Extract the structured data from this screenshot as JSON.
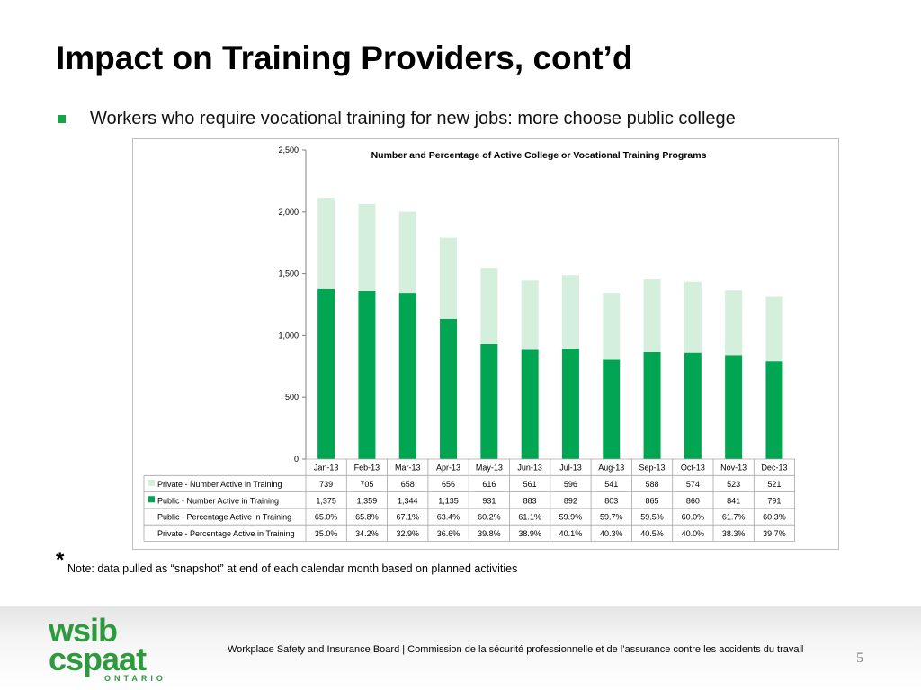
{
  "slide": {
    "title": "Impact on Training Providers, cont’d",
    "bullet": "Workers who require vocational training for new jobs: more choose public college",
    "note_star": "*",
    "note": "Note: data pulled as “snapshot” at end of each calendar month based on planned activities",
    "footer_text": "Workplace Safety and Insurance Board  | Commission de la sécurité professionnelle et de l’assurance contre les accidents du travail",
    "page_number": "5",
    "logo": {
      "line1": "wsib",
      "line2": "cspaat",
      "line3": "ONTARIO"
    },
    "colors": {
      "accent": "#1aa24b",
      "logo_green": "#2e9a3f"
    }
  },
  "chart_data": {
    "type": "bar",
    "stacked": true,
    "title": "Number and Percentage of Active College or Vocational Training Programs",
    "categories": [
      "Jan-13",
      "Feb-13",
      "Mar-13",
      "Apr-13",
      "May-13",
      "Jun-13",
      "Jul-13",
      "Aug-13",
      "Sep-13",
      "Oct-13",
      "Nov-13",
      "Dec-13"
    ],
    "ylim": [
      0,
      2500
    ],
    "yticks": [
      "0",
      "500",
      "1,000",
      "1,500",
      "2,000",
      "2,500"
    ],
    "ytick_values": [
      0,
      500,
      1000,
      1500,
      2000,
      2500
    ],
    "grid": false,
    "series": [
      {
        "name": "Public - Number Active in Training",
        "values": [
          1375,
          1359,
          1344,
          1135,
          931,
          883,
          892,
          803,
          865,
          860,
          841,
          791
        ],
        "color": "#00a651"
      },
      {
        "name": "Private - Number Active in Training",
        "values": [
          739,
          705,
          658,
          656,
          616,
          561,
          596,
          541,
          588,
          574,
          523,
          521
        ],
        "color": "#d5efdd"
      }
    ],
    "table": {
      "rows": [
        {
          "label": "Private - Number Active in Training",
          "swatch": "#d5efdd",
          "cells": [
            "739",
            "705",
            "658",
            "656",
            "616",
            "561",
            "596",
            "541",
            "588",
            "574",
            "523",
            "521"
          ]
        },
        {
          "label": "Public - Number Active in Training",
          "swatch": "#00a651",
          "cells": [
            "1,375",
            "1,359",
            "1,344",
            "1,135",
            "931",
            "883",
            "892",
            "803",
            "865",
            "860",
            "841",
            "791"
          ]
        },
        {
          "label": "Public - Percentage Active in Training",
          "swatch": "",
          "cells": [
            "65.0%",
            "65.8%",
            "67.1%",
            "63.4%",
            "60.2%",
            "61.1%",
            "59.9%",
            "59.7%",
            "59.5%",
            "60.0%",
            "61.7%",
            "60.3%"
          ]
        },
        {
          "label": "Private - Percentage Active in Training",
          "swatch": "",
          "cells": [
            "35.0%",
            "34.2%",
            "32.9%",
            "36.6%",
            "39.8%",
            "38.9%",
            "40.1%",
            "40.3%",
            "40.5%",
            "40.0%",
            "38.3%",
            "39.7%"
          ]
        }
      ]
    }
  }
}
